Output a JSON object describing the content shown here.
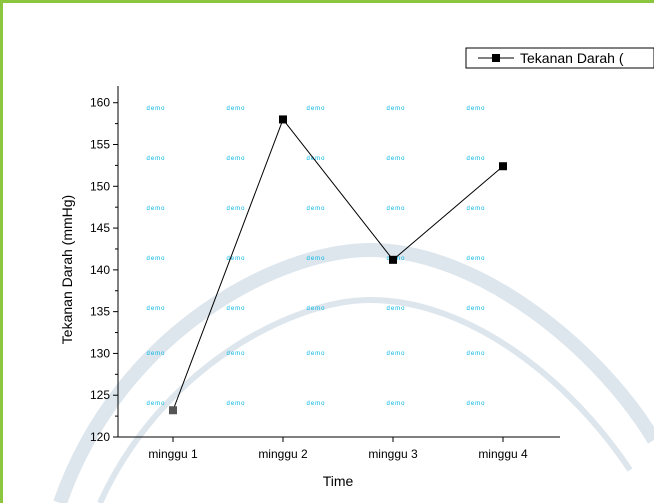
{
  "chart_data": {
    "type": "line",
    "categories": [
      "minggu 1",
      "minggu 2",
      "minggu 3",
      "minggu 4"
    ],
    "series": [
      {
        "name": "Tekanan Darah (",
        "values": [
          123.2,
          158,
          141.2,
          152.4
        ]
      }
    ],
    "xlabel": "Time",
    "ylabel": "Tekanan Darah (mmHg)",
    "ylim": [
      120,
      162
    ],
    "yticks": [
      120,
      125,
      130,
      135,
      140,
      145,
      150,
      155,
      160
    ],
    "legend_position": "top-right",
    "grid": false,
    "line_color": "#000000",
    "marker": "square",
    "watermark_text": "demo"
  },
  "colors": {
    "border": "#8cc63f",
    "watermark": "#00b4e6"
  }
}
